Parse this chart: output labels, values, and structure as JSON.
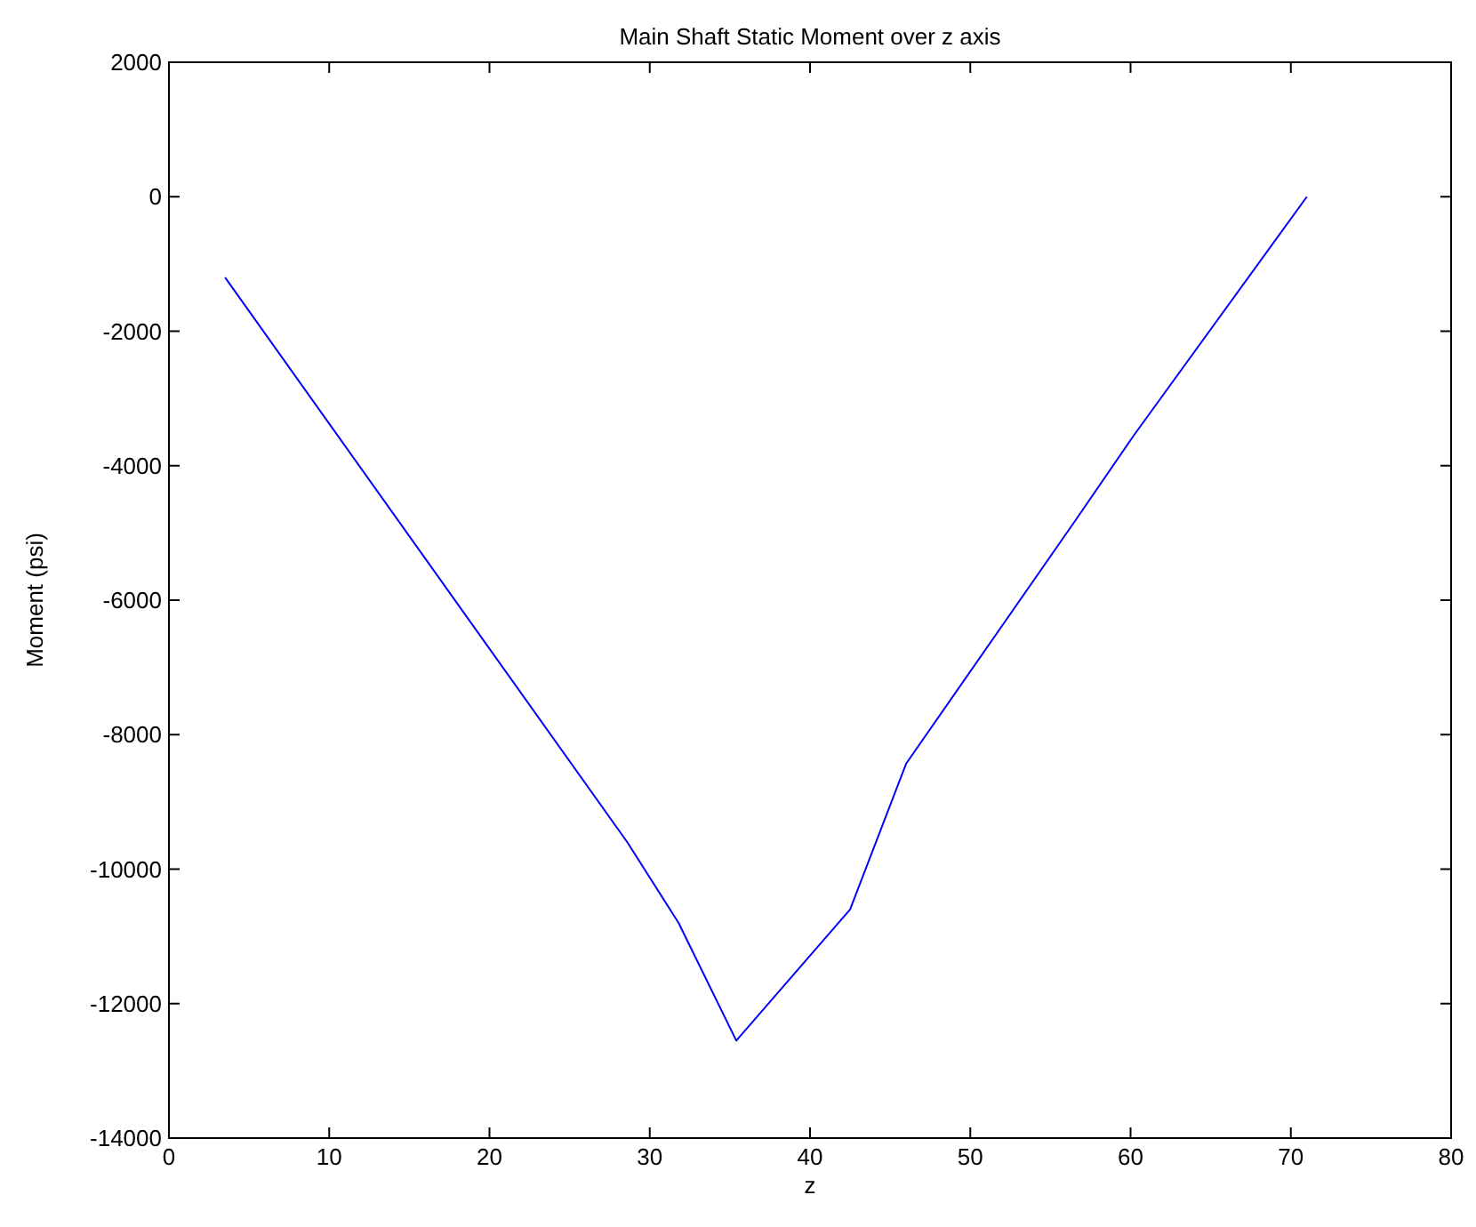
{
  "chart_data": {
    "type": "line",
    "title": "Main Shaft Static Moment over z axis",
    "xlabel": "z",
    "ylabel": "Moment (psi)",
    "x": [
      3.5,
      28.6,
      31.8,
      35.4,
      42.5,
      46.0,
      56.6,
      60.2,
      71.0
    ],
    "series": [
      {
        "color": "#0000ff",
        "values": [
          -1200,
          -9600,
          -10800,
          -12550,
          -10600,
          -8430,
          -4800,
          -3550,
          0
        ]
      }
    ],
    "xlim": [
      0,
      80
    ],
    "xticks": [
      0,
      10,
      20,
      30,
      40,
      50,
      60,
      70,
      80
    ],
    "ylim": [
      -14000,
      2000
    ],
    "yticks": [
      -14000,
      -12000,
      -10000,
      -8000,
      -6000,
      -4000,
      -2000,
      0,
      2000
    ],
    "grid": false,
    "marker": "none",
    "line_style": "solid"
  }
}
